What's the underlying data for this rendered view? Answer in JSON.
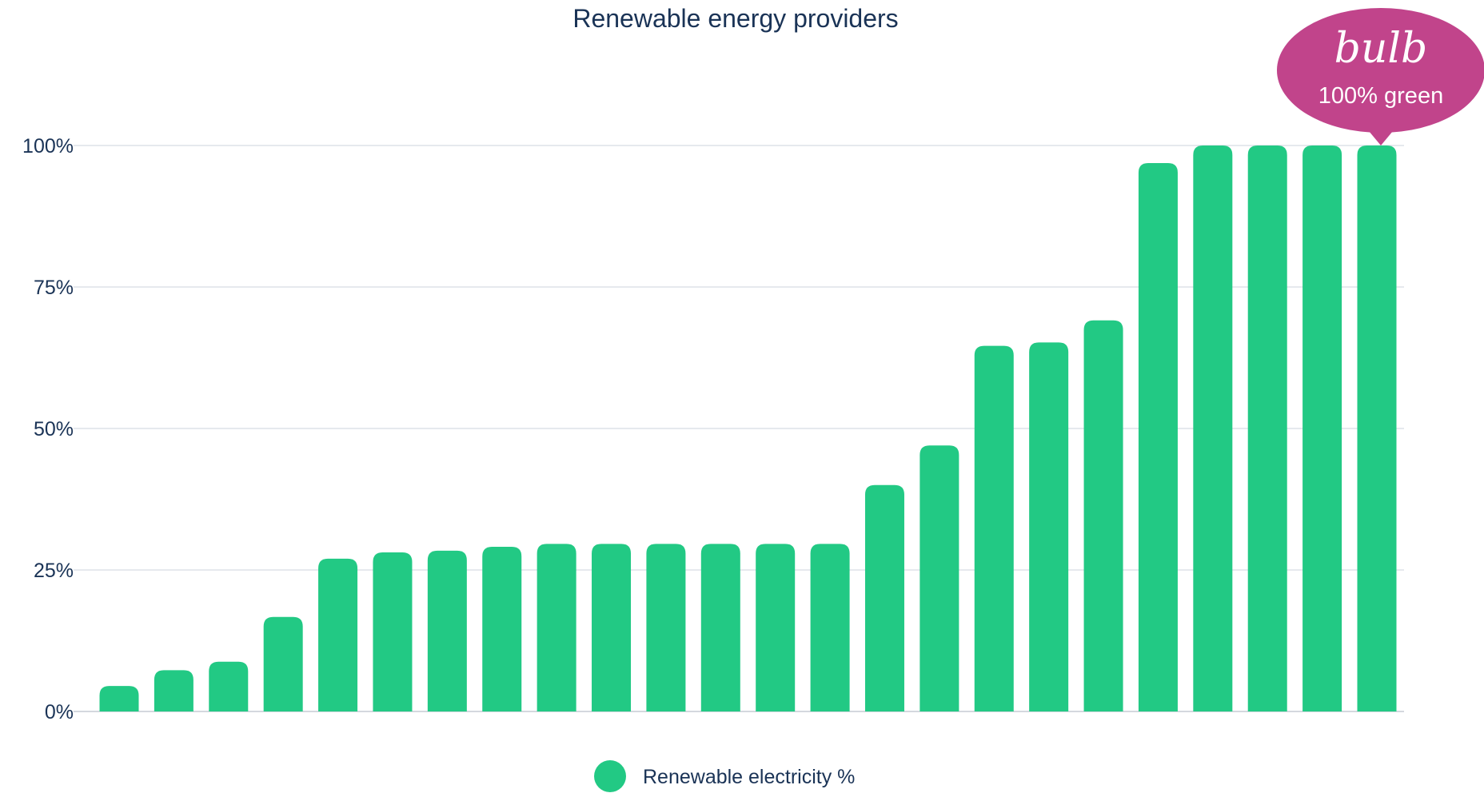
{
  "chart_data": {
    "type": "bar",
    "title": "Renewable energy providers",
    "xlabel": "",
    "ylabel": "",
    "ylim": [
      0,
      100
    ],
    "yticks": [
      "0%",
      "25%",
      "50%",
      "75%",
      "100%"
    ],
    "grid": true,
    "legend_position": "bottom-center",
    "series": [
      {
        "name": "Renewable electricity %",
        "color": "#22c984",
        "values": [
          4.5,
          7.3,
          8.8,
          16.7,
          27,
          28.1,
          28.4,
          29.1,
          29.6,
          29.6,
          29.6,
          29.6,
          29.6,
          29.6,
          40,
          47,
          64.6,
          65.2,
          69.1,
          96.9,
          100,
          100,
          100,
          100
        ]
      }
    ]
  },
  "callout": {
    "logo": "bulb",
    "text": "100% green",
    "color": "#c1448b",
    "target_index": 23
  },
  "colors": {
    "text": "#1a3356",
    "grid": "#dde2e8",
    "bar": "#22c984"
  }
}
